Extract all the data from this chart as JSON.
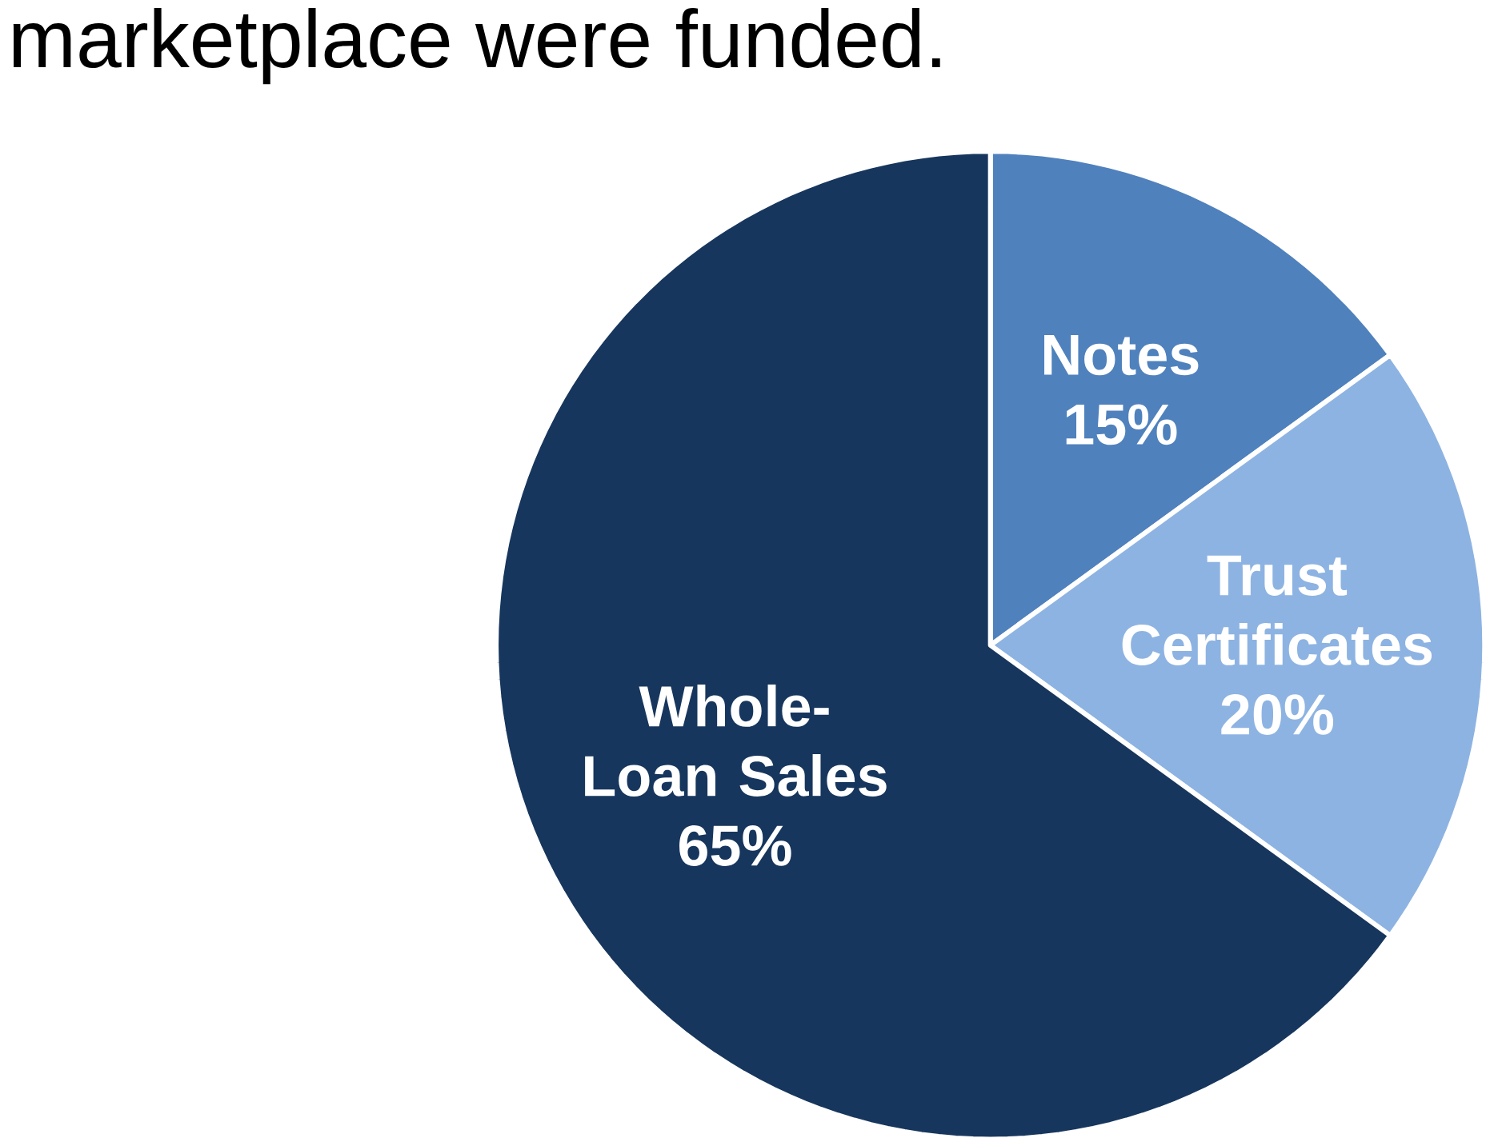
{
  "chart_data": {
    "type": "pie",
    "title": "marketplace were funded.",
    "categories": [
      "Notes",
      "Trust Certificates",
      "Whole-Loan Sales"
    ],
    "values": [
      15,
      20,
      65
    ],
    "value_labels": [
      "15%",
      "20%",
      "65%"
    ],
    "colors": [
      "#4f81bd",
      "#8db3e2",
      "#17365d"
    ]
  }
}
